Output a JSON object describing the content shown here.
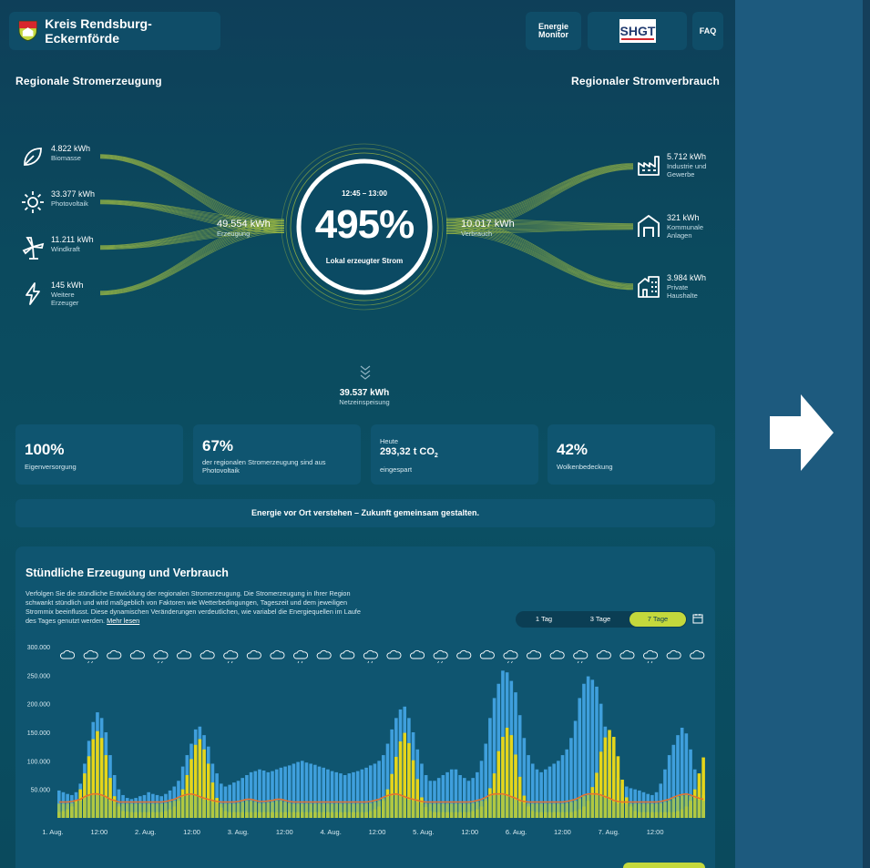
{
  "header": {
    "brand": "Kreis Rendsburg-Eckernförde",
    "energie_monitor": [
      "Energie",
      "Monitor"
    ],
    "shgt_logo": "SHGT",
    "faq": "FAQ"
  },
  "flow": {
    "generation_title": "Regionale Stromerzeugung",
    "consumption_title": "Regionaler Stromverbrauch",
    "sources": [
      {
        "value": "4.822 kWh",
        "label": [
          "Biomasse"
        ],
        "icon": "leaf-icon"
      },
      {
        "value": "33.377 kWh",
        "label": [
          "Photovoltaik"
        ],
        "icon": "sun-icon"
      },
      {
        "value": "11.211 kWh",
        "label": [
          "Windkraft"
        ],
        "icon": "wind-turbine-icon"
      },
      {
        "value": "145 kWh",
        "label": [
          "Weitere",
          "Erzeuger"
        ],
        "icon": "lightning-icon"
      }
    ],
    "consumers": [
      {
        "value": "5.712 kWh",
        "label": [
          "Industrie und",
          "Gewerbe"
        ],
        "icon": "factory-icon"
      },
      {
        "value": "321 kWh",
        "label": [
          "Kommunale",
          "Anlagen"
        ],
        "icon": "municipal-building-icon"
      },
      {
        "value": "3.984 kWh",
        "label": [
          "Private",
          "Haushalte"
        ],
        "icon": "house-icon"
      }
    ],
    "generation_total": {
      "value": "49.554 kWh",
      "label": "Erzeugung"
    },
    "consumption_total": {
      "value": "10.017 kWh",
      "label": "Verbrauch"
    },
    "gauge": {
      "time": "12:45 – 13:00",
      "percent": "495%",
      "label": "Lokal erzeugter Strom"
    },
    "feed_in": {
      "value": "39.537 kWh",
      "label": "Netzeinspeisung"
    }
  },
  "stats": [
    {
      "big": "100%",
      "small": [
        "Eigenversorgung"
      ]
    },
    {
      "big": "67%",
      "small": [
        "der regionalen Stromerzeugung sind aus",
        "Photovoltaik"
      ]
    },
    {
      "top": "Heute",
      "value": "293,32 t CO",
      "sub": "2",
      "bottom": "eingespart"
    },
    {
      "big": "42%",
      "small": [
        "Wolkenbedeckung"
      ]
    }
  ],
  "banner": "Energie vor Ort verstehen – Zukunft gemeinsam gestalten.",
  "chart_section": {
    "title": "Stündliche Erzeugung und Verbrauch",
    "description": "Verfolgen Sie die stündliche Entwicklung der regionalen Stromerzeugung. Die Stromerzeugung in Ihrer Region schwankt stündlich und wird maßgeblich von Faktoren wie Wetterbedingungen, Tageszeit und dem jeweiligen Strommix beeinflusst. Diese dynamischen Veränderungen verdeutlichen, wie variabel die Energiequellen im Laufe des Tages genutzt werden.",
    "read_more": "Mehr lesen",
    "tabs": [
      "1 Tag",
      "3 Tage",
      "7 Tage"
    ],
    "active_tab": 2
  },
  "colors": {
    "accent": "#c4d83c",
    "pv": "#e5d51a",
    "total": "#3f9fdc",
    "base": "#a7c64a",
    "consumption": "#e4742e"
  },
  "chart_data": {
    "type": "bar",
    "ylim": [
      0,
      300000
    ],
    "yticks": [
      "300.000",
      "250.000",
      "200.000",
      "150.000",
      "100.000",
      "50.000"
    ],
    "xticks": [
      "1. Aug.",
      "12:00",
      "2. Aug.",
      "12:00",
      "3. Aug.",
      "12:00",
      "4. Aug.",
      "12:00",
      "5. Aug.",
      "12:00",
      "6. Aug.",
      "12:00",
      "7. Aug.",
      "12:00"
    ],
    "series": [
      {
        "values": [
          10000,
          12000,
          15000,
          20000,
          30000,
          50000,
          78000,
          108000,
          138000,
          152000,
          140000,
          110000,
          70000,
          38000,
          20000,
          12000,
          11000,
          10000,
          10000,
          10000,
          10000,
          10000,
          10000,
          10000,
          10000,
          12000,
          15000,
          20000,
          30000,
          50000,
          75000,
          103000,
          128000,
          138000,
          120000,
          95000,
          62000,
          35000,
          18000,
          12000,
          10000,
          10000,
          10000,
          10000,
          10000,
          10000,
          10000,
          10000,
          10000,
          10000,
          10000,
          10000,
          10000,
          10000,
          10000,
          10000,
          10000,
          10000,
          10000,
          10000,
          10000,
          10000,
          10000,
          10000,
          10000,
          10000,
          10000,
          10000,
          10000,
          10000,
          10000,
          10000,
          10000,
          12000,
          15000,
          20000,
          30000,
          50000,
          77000,
          107000,
          134000,
          149000,
          131000,
          101000,
          68000,
          36000,
          19000,
          12000,
          10000,
          10000,
          10000,
          10000,
          10000,
          10000,
          10000,
          10000,
          10000,
          12000,
          15000,
          20000,
          30000,
          52000,
          78000,
          117000,
          142000,
          158000,
          145000,
          111000,
          72000,
          39000,
          20000,
          12000,
          10000,
          10000,
          10000,
          10000,
          10000,
          10000,
          10000,
          10000,
          10000,
          12000,
          15000,
          20000,
          30000,
          54000,
          79000,
          116000,
          141000,
          154000,
          142000,
          108000,
          67000,
          36000,
          20000,
          12000,
          10000,
          10000,
          10000,
          10000,
          10000,
          10000,
          10000,
          10000,
          10000,
          12000,
          15000,
          20000,
          30000,
          50000,
          78000,
          106000,
          128000,
          138000,
          125000,
          90000,
          50000,
          25000,
          15000,
          12000
        ],
        "name": ""
      },
      {
        "values": [
          48000,
          45000,
          42000,
          40000,
          45000,
          60000,
          95000,
          135000,
          168000,
          185000,
          175000,
          150000,
          110000,
          75000,
          50000,
          40000,
          35000,
          33000,
          35000,
          38000,
          40000,
          45000,
          42000,
          40000,
          38000,
          42000,
          48000,
          55000,
          65000,
          90000,
          110000,
          130000,
          155000,
          160000,
          145000,
          125000,
          95000,
          78000,
          60000,
          55000,
          58000,
          62000,
          65000,
          70000,
          75000,
          80000,
          82000,
          85000,
          83000,
          80000,
          82000,
          85000,
          88000,
          90000,
          92000,
          95000,
          98000,
          100000,
          97000,
          95000,
          93000,
          90000,
          88000,
          85000,
          82000,
          80000,
          78000,
          75000,
          78000,
          80000,
          82000,
          85000,
          88000,
          92000,
          95000,
          100000,
          110000,
          130000,
          155000,
          175000,
          190000,
          195000,
          175000,
          150000,
          120000,
          95000,
          75000,
          65000,
          65000,
          70000,
          75000,
          80000,
          85000,
          85000,
          75000,
          70000,
          65000,
          70000,
          80000,
          100000,
          130000,
          175000,
          210000,
          235000,
          258000,
          255000,
          240000,
          220000,
          180000,
          140000,
          110000,
          95000,
          85000,
          80000,
          85000,
          90000,
          95000,
          100000,
          110000,
          120000,
          140000,
          170000,
          210000,
          235000,
          248000,
          242000,
          230000,
          200000,
          160000,
          120000,
          90000,
          70000,
          60000,
          55000,
          52000,
          50000,
          48000,
          45000,
          42000,
          40000,
          45000,
          60000,
          85000,
          110000,
          128000,
          145000,
          158000,
          148000,
          120000,
          85000,
          55000,
          40000
        ],
        "name": ""
      },
      {
        "values": [
          25000,
          25000,
          25000,
          26000,
          28000,
          30000,
          35000,
          38000,
          40000,
          40000,
          38000,
          35000,
          30000,
          28000,
          25000,
          25000,
          25000,
          25000,
          25000,
          25000,
          25000,
          25000,
          25000,
          25000,
          25000,
          26000,
          28000,
          30000,
          34000,
          37000,
          39000,
          40000,
          38000,
          35000,
          32000,
          30000,
          28000,
          26000,
          25000,
          25000,
          25000,
          25000,
          26000,
          28000,
          30000,
          30000,
          28000,
          26000,
          26000,
          27000,
          28000,
          30000,
          30000,
          28000,
          26000,
          25000,
          25000,
          25000,
          25000,
          25000,
          25000,
          25000,
          25000,
          25000,
          25000,
          25000,
          25000,
          25000,
          25000,
          25000,
          25000,
          25000,
          25000,
          26000,
          28000,
          30000,
          34000,
          37000,
          39000,
          40000,
          38000,
          35000,
          32000,
          30000,
          28000,
          26000,
          25000,
          25000,
          25000,
          25000,
          25000,
          25000,
          25000,
          25000,
          25000,
          25000,
          25000,
          26000,
          28000,
          30000,
          34000,
          38000,
          40000,
          40000,
          40000,
          38000,
          35000,
          32000,
          28000,
          26000,
          25000,
          25000,
          25000,
          25000,
          25000,
          25000,
          25000,
          25000,
          25000,
          26000,
          28000,
          30000,
          34000,
          38000,
          40000,
          40000,
          40000,
          38000,
          35000,
          32000,
          28000,
          26000,
          25000,
          25000,
          25000,
          25000,
          25000,
          25000,
          25000,
          25000,
          25000,
          26000,
          28000,
          30000,
          34000,
          37000,
          39000,
          40000,
          38000,
          35000,
          32000,
          30000,
          28000,
          26000,
          25000,
          25000
        ],
        "name": ""
      }
    ]
  }
}
